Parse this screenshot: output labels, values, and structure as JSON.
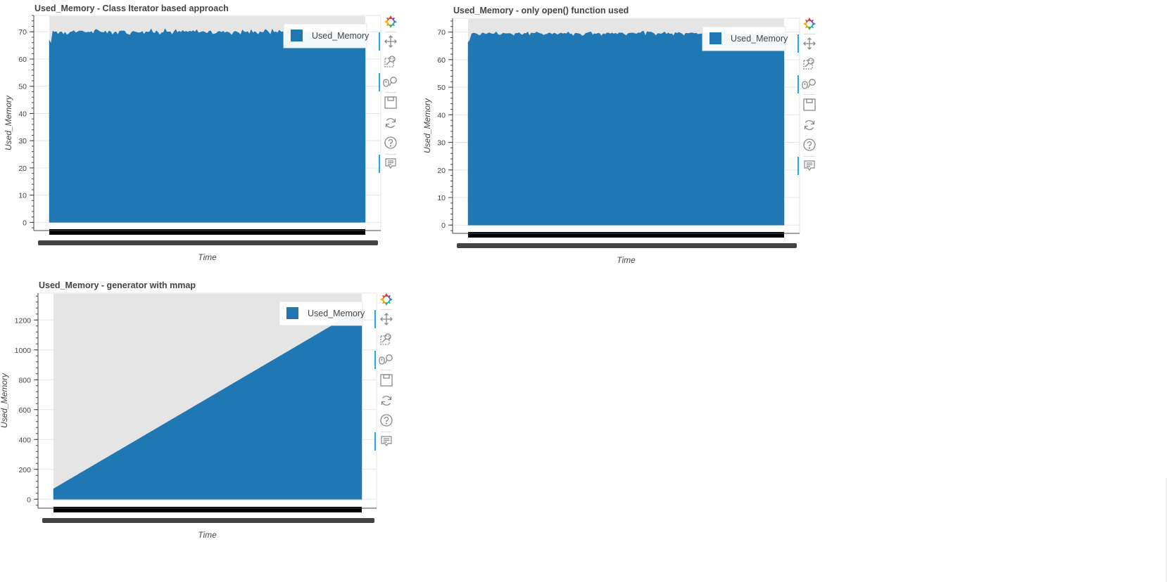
{
  "colors": {
    "bar": "#1f77b4",
    "plot_bg": "#e5e5e5",
    "axis": "#444444",
    "grid": "#ffffff",
    "tool_active": "#26aae1"
  },
  "toolbar_tools": [
    {
      "name": "bokeh-logo-icon",
      "active": false
    },
    {
      "name": "pan-icon",
      "active": true
    },
    {
      "name": "box-zoom-icon",
      "active": false
    },
    {
      "name": "wheel-zoom-icon",
      "active": true
    },
    {
      "name": "save-icon",
      "active": false
    },
    {
      "name": "reset-icon",
      "active": false
    },
    {
      "name": "help-icon",
      "active": false
    },
    {
      "name": "hover-icon",
      "active": true
    }
  ],
  "chart_data": [
    {
      "type": "area",
      "title": "Used_Memory - Class Iterator based approach",
      "xlabel": "Time",
      "ylabel": "Used_Memory",
      "ylim": [
        -3,
        76
      ],
      "yticks": [
        0,
        10,
        20,
        30,
        40,
        50,
        60,
        70
      ],
      "grid": true,
      "legend": "top-right",
      "series": [
        {
          "name": "Used_Memory",
          "shape": "flat",
          "start": 66,
          "level": 70,
          "jitter": 1.2
        }
      ]
    },
    {
      "type": "area",
      "title": "Used_Memory - only open() function used",
      "xlabel": "Time",
      "ylabel": "Used_Memory",
      "ylim": [
        -3,
        75
      ],
      "yticks": [
        0,
        10,
        20,
        30,
        40,
        50,
        60,
        70
      ],
      "grid": true,
      "legend": "top-right",
      "series": [
        {
          "name": "Used_Memory",
          "shape": "flat",
          "start": 67,
          "level": 69.5,
          "jitter": 1.0
        }
      ]
    },
    {
      "type": "area",
      "title": "Used_Memory - generator with mmap",
      "xlabel": "Time",
      "ylabel": "Used_Memory",
      "ylim": [
        -60,
        1380
      ],
      "yticks": [
        0,
        200,
        400,
        600,
        800,
        1000,
        1200
      ],
      "grid": true,
      "legend": "top-right",
      "series": [
        {
          "name": "Used_Memory",
          "shape": "linear",
          "start": 70,
          "level": 1280,
          "jitter": 0
        }
      ]
    }
  ]
}
